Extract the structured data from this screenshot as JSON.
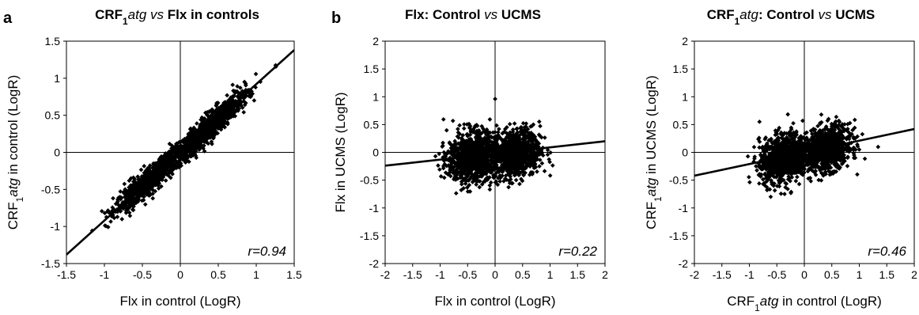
{
  "panel_letters": [
    "a",
    "b"
  ],
  "chart_data": [
    {
      "type": "scatter",
      "title": {
        "pre": "CRF",
        "sub": "1",
        "italic1": "atg",
        "mid": " ",
        "italic2": "vs",
        "post": " Flx in controls"
      },
      "xlabel": {
        "pre": "",
        "sub": "",
        "italic": "",
        "post": "Flx in control (LogR)"
      },
      "ylabel": {
        "pre": "CRF",
        "sub": "1",
        "italic": "atg",
        "post": " in control (LogR)"
      },
      "xlim": [
        -1.5,
        1.5
      ],
      "ylim": [
        -1.5,
        1.5
      ],
      "xticks": [
        "-1.5",
        "-1",
        "-0.5",
        "0",
        "0.5",
        "1",
        "1.5"
      ],
      "yticks": [
        "-1.5",
        "-1",
        "-0.5",
        "0",
        "0.5",
        "1",
        "1.5"
      ],
      "annotation": "r=0.94",
      "r": 0.94,
      "regression": {
        "slope": 0.92,
        "intercept": 0.0
      },
      "clusters": [
        {
          "cx": -0.38,
          "cy": -0.35,
          "sx": 0.24,
          "sy": 0.23,
          "corr": 0.93,
          "n": 950
        },
        {
          "cx": 0.4,
          "cy": 0.35,
          "sx": 0.24,
          "sy": 0.24,
          "corr": 0.93,
          "n": 950
        }
      ],
      "grid": false,
      "legend": "none"
    },
    {
      "type": "scatter",
      "title": {
        "pre": "Flx: Control ",
        "sub": "",
        "italic1": "vs",
        "mid": "",
        "italic2": "",
        "post": " UCMS"
      },
      "xlabel": {
        "pre": "",
        "sub": "",
        "italic": "",
        "post": "Flx in control (LogR)"
      },
      "ylabel": {
        "pre": "",
        "sub": "",
        "italic": "",
        "post": "Flx in UCMS (LogR)"
      },
      "xlim": [
        -2,
        2
      ],
      "ylim": [
        -2,
        2
      ],
      "xticks": [
        "-2",
        "-1.5",
        "-1",
        "-0.5",
        "0",
        "0.5",
        "1",
        "1.5",
        "2"
      ],
      "yticks": [
        "-2",
        "-1.5",
        "-1",
        "-0.5",
        "0",
        "0.5",
        "1",
        "1.5",
        "2"
      ],
      "annotation": "r=0.22",
      "r": 0.22,
      "regression": {
        "slope": 0.11,
        "intercept": -0.02
      },
      "clusters": [
        {
          "cx": -0.42,
          "cy": -0.07,
          "sx": 0.22,
          "sy": 0.23,
          "corr": 0.12,
          "n": 900
        },
        {
          "cx": 0.38,
          "cy": -0.02,
          "sx": 0.22,
          "sy": 0.22,
          "corr": 0.12,
          "n": 900
        }
      ],
      "grid": false,
      "legend": "none"
    },
    {
      "type": "scatter",
      "title": {
        "pre": "CRF",
        "sub": "1",
        "italic1": "atg",
        "mid": ": Control ",
        "italic2": "vs",
        "post": " UCMS"
      },
      "xlabel": {
        "pre": "CRF",
        "sub": "1",
        "italic": "atg",
        "post": " in control (LogR)"
      },
      "ylabel": {
        "pre": "CRF",
        "sub": "1",
        "italic": "atg",
        "post": " in UCMS (LogR)"
      },
      "xlim": [
        -2,
        2
      ],
      "ylim": [
        -2,
        2
      ],
      "xticks": [
        "-2",
        "-1.5",
        "-1",
        "-0.5",
        "0",
        "0.5",
        "1",
        "1.5",
        "2"
      ],
      "yticks": [
        "-2",
        "-1.5",
        "-1",
        "-0.5",
        "0",
        "0.5",
        "1",
        "1.5",
        "2"
      ],
      "annotation": "r=0.46",
      "r": 0.46,
      "regression": {
        "slope": 0.21,
        "intercept": 0.0
      },
      "clusters": [
        {
          "cx": -0.38,
          "cy": -0.1,
          "sx": 0.22,
          "sy": 0.22,
          "corr": 0.25,
          "n": 900
        },
        {
          "cx": 0.4,
          "cy": 0.06,
          "sx": 0.22,
          "sy": 0.2,
          "corr": 0.25,
          "n": 900
        }
      ],
      "grid": false,
      "legend": "none"
    }
  ]
}
